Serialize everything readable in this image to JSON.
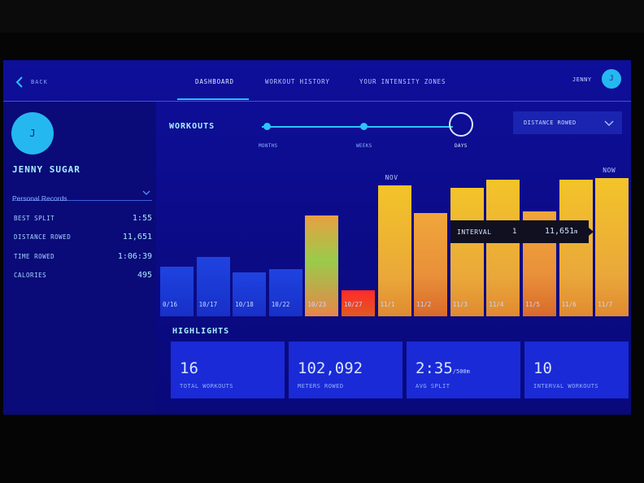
{
  "nav": {
    "back_label": "BACK",
    "tabs": [
      {
        "label": "DASHBOARD",
        "active": true
      },
      {
        "label": "WORKOUT HISTORY",
        "active": false
      },
      {
        "label": "YOUR INTENSITY ZONES",
        "active": false
      }
    ],
    "user_short": "JENNY",
    "avatar_initial": "J"
  },
  "profile": {
    "name": "JENNY SUGAR",
    "avatar_initial": "J",
    "records_select": "Personal Records",
    "stats": [
      {
        "label": "BEST SPLIT",
        "value": "1:55"
      },
      {
        "label": "DISTANCE ROWED",
        "value": "11,651"
      },
      {
        "label": "TIME ROWED",
        "value": "1:06:39"
      },
      {
        "label": "CALORIES",
        "value": "495"
      }
    ]
  },
  "workouts": {
    "title": "WORKOUTS",
    "ranges": [
      "MONTHS",
      "WEEKS",
      "DAYS"
    ],
    "selected_range": "DAYS",
    "metric_select": "DISTANCE ROWED"
  },
  "chart_data": {
    "type": "bar",
    "title": "",
    "xlabel": "",
    "ylabel": "",
    "categories": [
      "0/16",
      "10/17",
      "10/18",
      "10/22",
      "10/23",
      "10/27",
      "11/1",
      "11/2",
      "11/3",
      "11/4",
      "11/5",
      "11/6",
      "11/7"
    ],
    "values": [
      0.36,
      0.43,
      0.32,
      0.34,
      0.73,
      0.19,
      0.95,
      0.75,
      0.93,
      0.99,
      0.76,
      0.99,
      1.0
    ],
    "value_note_units": "relative height (y-axis unlabeled)",
    "month_markers": [
      {
        "label": "NOV",
        "at": "11/1"
      },
      {
        "label": "NOW",
        "at": "11/7"
      }
    ],
    "tooltip": {
      "label": "INTERVAL",
      "index": "1",
      "value": "11,651",
      "unit": "m",
      "at": "11/4"
    },
    "colors": {
      "low": "#1f43e0",
      "mid": "#e8a040",
      "high": "#f3c429"
    }
  },
  "highlights": {
    "title": "HIGHLIGHTS",
    "cards": [
      {
        "value": "16",
        "unit": "",
        "label": "TOTAL WORKOUTS"
      },
      {
        "value": "102,092",
        "unit": "",
        "label": "METERS ROWED"
      },
      {
        "value": "2:35",
        "unit": "/500m",
        "label": "AVG SPLIT"
      },
      {
        "value": "10",
        "unit": "",
        "label": "INTERVAL WORKOUTS"
      }
    ]
  },
  "colors": {
    "accent": "#27c2ff",
    "background": "#0b0b86",
    "card": "#1a2ad6"
  }
}
